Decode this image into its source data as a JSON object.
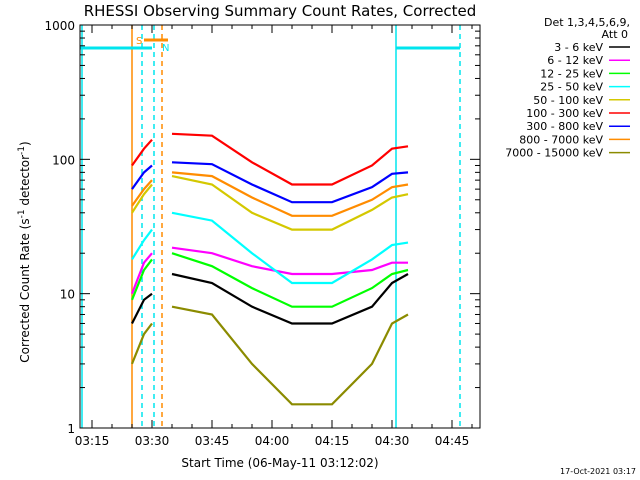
{
  "chart_data": {
    "type": "line",
    "title": "RHESSI Observing Summary Count Rates, Corrected",
    "xlabel": "Start Time (06-May-11 03:12:02)",
    "ylabel_main": "Corrected Count Rate (s",
    "ylabel_exp1": "-1",
    "ylabel_mid": " detector",
    "ylabel_exp2": "-1",
    "ylabel_end": ")",
    "y_scale": "log",
    "ylim": [
      1,
      1000
    ],
    "xlim": [
      "03:12",
      "04:52"
    ],
    "x_ticks": [
      "03:15",
      "03:30",
      "03:45",
      "04:00",
      "04:15",
      "04:30",
      "04:45"
    ],
    "y_ticks": [
      "1",
      "10",
      "100",
      "1000"
    ],
    "legend_header": [
      "Det 1,3,4,5,6,9,",
      "Att 0"
    ],
    "legend_placement": "right",
    "timestamp": "17-Oct-2021 03:17",
    "flags": {
      "S": {
        "label": "S",
        "color": "#ff8c00",
        "start": "03:28",
        "end": "03:34"
      },
      "N": {
        "label": "N",
        "color": "#00e5ee",
        "start": "03:12",
        "end": "03:30"
      }
    },
    "markers": [
      {
        "time": "03:25",
        "color": "#ff8c00",
        "style": "solid"
      },
      {
        "time": "03:27.5",
        "color": "#00e5ee",
        "style": "dashed"
      },
      {
        "time": "03:30.5",
        "color": "#00e5ee",
        "style": "dashed"
      },
      {
        "time": "03:32.5",
        "color": "#ff8c00",
        "style": "dashed"
      },
      {
        "time": "04:31",
        "color": "#00e5ee",
        "style": "solid"
      },
      {
        "time": "04:47",
        "color": "#00e5ee",
        "style": "dashed"
      },
      {
        "time": "03:12.5",
        "color": "#00e5ee",
        "style": "solid"
      }
    ],
    "series": [
      {
        "name": "3 - 6 keV",
        "color": "#000000",
        "x": [
          "03:25",
          "03:28",
          "03:30",
          "03:35",
          "03:45",
          "03:55",
          "04:05",
          "04:15",
          "04:25",
          "04:30",
          "04:34"
        ],
        "y": [
          6,
          9,
          10,
          14,
          12,
          8,
          6,
          6,
          8,
          12,
          14
        ]
      },
      {
        "name": "6 - 12 keV",
        "color": "#ff00ff",
        "x": [
          "03:25",
          "03:28",
          "03:30",
          "03:35",
          "03:45",
          "03:55",
          "04:05",
          "04:15",
          "04:25",
          "04:30",
          "04:34"
        ],
        "y": [
          10,
          17,
          20,
          22,
          20,
          16,
          14,
          14,
          15,
          17,
          17
        ]
      },
      {
        "name": "12 - 25 keV",
        "color": "#00ff00",
        "x": [
          "03:25",
          "03:28",
          "03:30",
          "03:35",
          "03:45",
          "03:55",
          "04:05",
          "04:15",
          "04:25",
          "04:30",
          "04:34"
        ],
        "y": [
          9,
          15,
          18,
          20,
          16,
          11,
          8,
          8,
          11,
          14,
          15
        ]
      },
      {
        "name": "25 - 50 keV",
        "color": "#00ffff",
        "x": [
          "03:25",
          "03:28",
          "03:30",
          "03:35",
          "03:45",
          "03:55",
          "04:05",
          "04:15",
          "04:25",
          "04:30",
          "04:34"
        ],
        "y": [
          18,
          25,
          30,
          40,
          35,
          20,
          12,
          12,
          18,
          23,
          24
        ]
      },
      {
        "name": "50 - 100 keV",
        "color": "#d4c800",
        "x": [
          "03:25",
          "03:28",
          "03:30",
          "03:35",
          "03:45",
          "03:55",
          "04:05",
          "04:15",
          "04:25",
          "04:30",
          "04:34"
        ],
        "y": [
          40,
          55,
          65,
          75,
          65,
          40,
          30,
          30,
          42,
          52,
          55
        ]
      },
      {
        "name": "100 - 300 keV",
        "color": "#ff0000",
        "x": [
          "03:25",
          "03:28",
          "03:30",
          "03:35",
          "03:45",
          "03:55",
          "04:05",
          "04:15",
          "04:25",
          "04:30",
          "04:34"
        ],
        "y": [
          90,
          120,
          140,
          155,
          150,
          95,
          65,
          65,
          90,
          120,
          125
        ]
      },
      {
        "name": "300 - 800 keV",
        "color": "#0000ff",
        "x": [
          "03:25",
          "03:28",
          "03:30",
          "03:35",
          "03:45",
          "03:55",
          "04:05",
          "04:15",
          "04:25",
          "04:30",
          "04:34"
        ],
        "y": [
          60,
          80,
          90,
          95,
          92,
          65,
          48,
          48,
          62,
          78,
          80
        ]
      },
      {
        "name": "800 - 7000 keV",
        "color": "#ff8c00",
        "x": [
          "03:25",
          "03:28",
          "03:30",
          "03:35",
          "03:45",
          "03:55",
          "04:05",
          "04:15",
          "04:25",
          "04:30",
          "04:34"
        ],
        "y": [
          45,
          60,
          70,
          80,
          75,
          52,
          38,
          38,
          50,
          62,
          65
        ]
      },
      {
        "name": "7000 - 15000 keV",
        "color": "#8b8b00",
        "x": [
          "03:25",
          "03:28",
          "03:30",
          "03:35",
          "03:45",
          "03:55",
          "04:05",
          "04:15",
          "04:25",
          "04:30",
          "04:34"
        ],
        "y": [
          3,
          5,
          6,
          8,
          7,
          3,
          1.5,
          1.5,
          3,
          6,
          7
        ]
      }
    ]
  }
}
